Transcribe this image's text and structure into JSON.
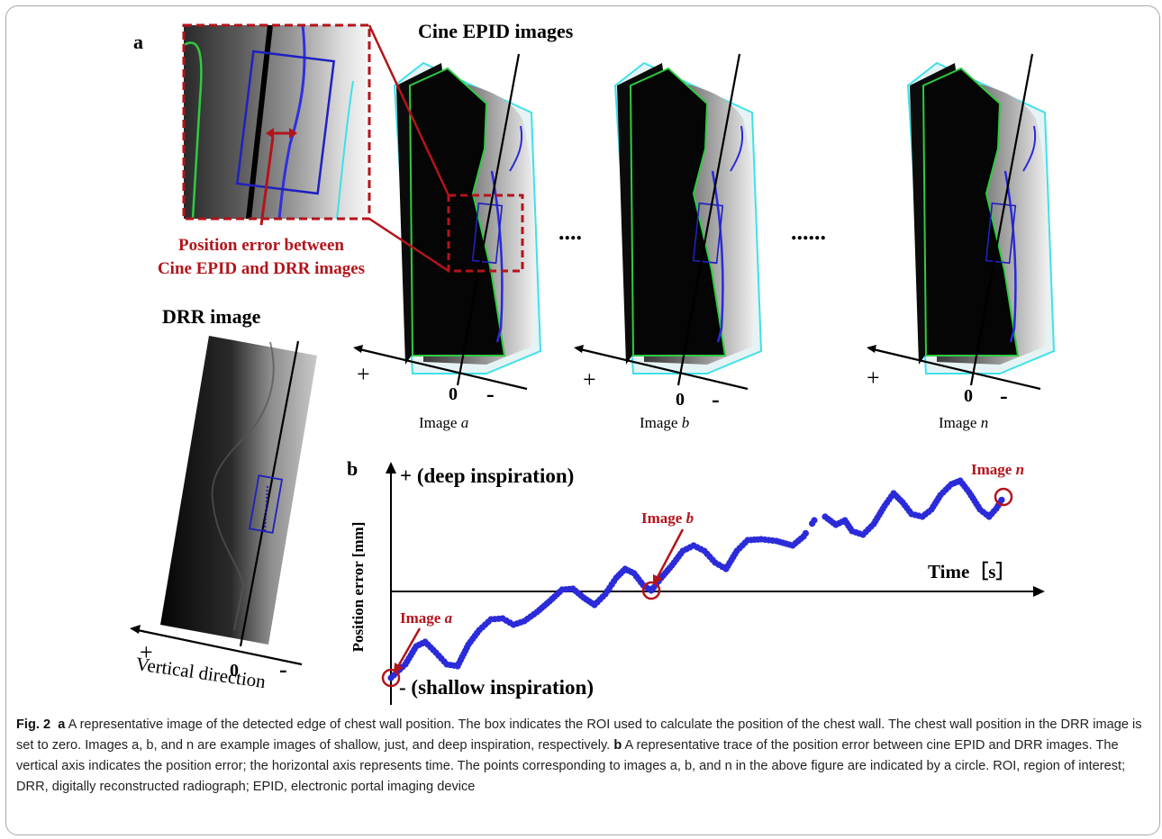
{
  "panel_a": {
    "label": "a",
    "title": "Cine EPID images",
    "inset_note_line1": "Position error between",
    "inset_note_line2": "Cine EPID and DRR images",
    "drr_title": "DRR image",
    "drr_axis_label": "Vertical direction",
    "ellipsis_1": "....",
    "ellipsis_2": "......",
    "plus": "+",
    "zero": "0",
    "minus": "-",
    "images": [
      {
        "prefix": "Image ",
        "letter": "a"
      },
      {
        "prefix": "Image ",
        "letter": "b"
      },
      {
        "prefix": "Image ",
        "letter": "n"
      }
    ]
  },
  "panel_b": {
    "label": "b",
    "plus_label": "+ (deep inspiration)",
    "minus_label": "- (shallow inspiration)",
    "ylabel": "Position error [mm]",
    "xlabel": "Time［s］",
    "markers": [
      {
        "prefix": "Image ",
        "letter": "a"
      },
      {
        "prefix": "Image ",
        "letter": "b"
      },
      {
        "prefix": "Image ",
        "letter": "n"
      }
    ]
  },
  "colors": {
    "trace": "#2b2bd9",
    "annotation_red": "#b3141b",
    "edge_green": "#2ecc40",
    "edge_cyan": "#40e0e8",
    "roi_blue": "#2020c0"
  },
  "caption": {
    "fig_label": "Fig. 2",
    "a_label": "a",
    "a_text": "A representative image of the detected edge of chest wall position. The box indicates the ROI used to calculate the position of the chest wall. The chest wall position in the DRR image is set to zero. Images a, b, and n are example images of shallow, just, and deep inspiration, respectively.",
    "b_label": "b",
    "b_text": "A representative trace of the position error between cine EPID and DRR images. The vertical axis indicates the position error; the horizontal axis represents time. The points corresponding to images a, b, and n in the above figure are indicated by a circle. ROI, region of interest; DRR, digitally reconstructed radiograph; EPID, electronic portal imaging device"
  }
}
